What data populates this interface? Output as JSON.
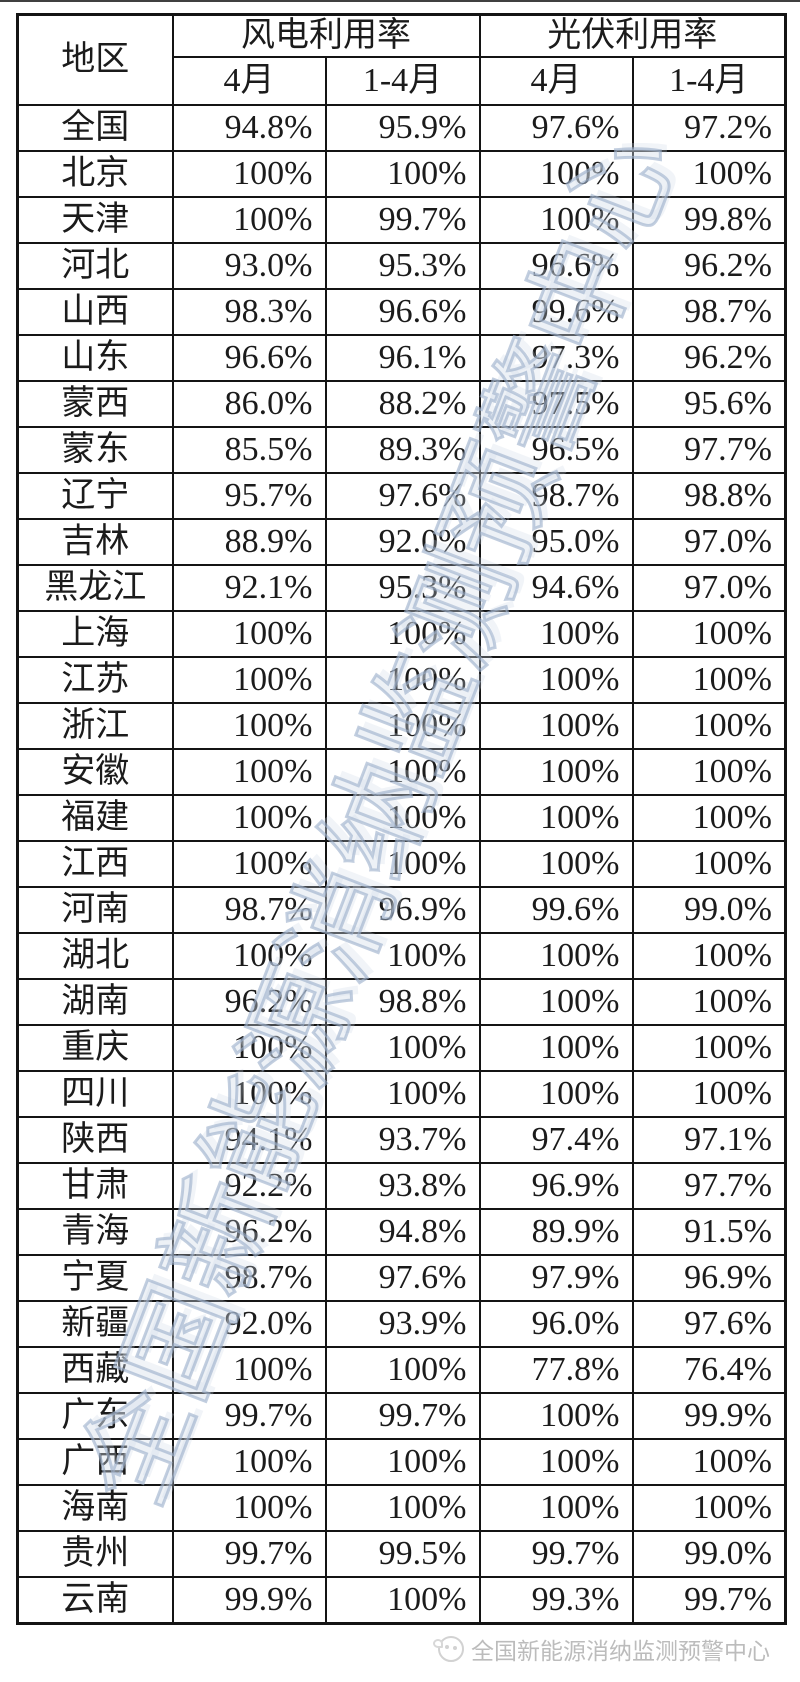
{
  "table": {
    "header": {
      "region": "地区",
      "wind_group": "风电利用率",
      "pv_group": "光伏利用率",
      "sub_apr": "4月",
      "sub_jan_apr": "1-4月"
    }
  },
  "watermark": {
    "text": "全国新能源消纳监测预警中心",
    "color": "#9cb0cb"
  },
  "footer": {
    "emblem_icon": "new-energy-center-emblem",
    "text": "全国新能源消纳监测预警中心",
    "text_color": "#bcbcbc"
  },
  "chart_data": {
    "type": "table",
    "title": "",
    "column_groups": [
      "风电利用率",
      "光伏利用率"
    ],
    "columns": [
      "地区",
      "风电利用率 4月",
      "风电利用率 1-4月",
      "光伏利用率 4月",
      "光伏利用率 1-4月"
    ],
    "rows": [
      [
        "全国",
        "94.8%",
        "95.9%",
        "97.6%",
        "97.2%"
      ],
      [
        "北京",
        "100%",
        "100%",
        "100%",
        "100%"
      ],
      [
        "天津",
        "100%",
        "99.7%",
        "100%",
        "99.8%"
      ],
      [
        "河北",
        "93.0%",
        "95.3%",
        "96.6%",
        "96.2%"
      ],
      [
        "山西",
        "98.3%",
        "96.6%",
        "99.6%",
        "98.7%"
      ],
      [
        "山东",
        "96.6%",
        "96.1%",
        "97.3%",
        "96.2%"
      ],
      [
        "蒙西",
        "86.0%",
        "88.2%",
        "97.5%",
        "95.6%"
      ],
      [
        "蒙东",
        "85.5%",
        "89.3%",
        "96.5%",
        "97.7%"
      ],
      [
        "辽宁",
        "95.7%",
        "97.6%",
        "98.7%",
        "98.8%"
      ],
      [
        "吉林",
        "88.9%",
        "92.0%",
        "95.0%",
        "97.0%"
      ],
      [
        "黑龙江",
        "92.1%",
        "95.3%",
        "94.6%",
        "97.0%"
      ],
      [
        "上海",
        "100%",
        "100%",
        "100%",
        "100%"
      ],
      [
        "江苏",
        "100%",
        "100%",
        "100%",
        "100%"
      ],
      [
        "浙江",
        "100%",
        "100%",
        "100%",
        "100%"
      ],
      [
        "安徽",
        "100%",
        "100%",
        "100%",
        "100%"
      ],
      [
        "福建",
        "100%",
        "100%",
        "100%",
        "100%"
      ],
      [
        "江西",
        "100%",
        "100%",
        "100%",
        "100%"
      ],
      [
        "河南",
        "98.7%",
        "96.9%",
        "99.6%",
        "99.0%"
      ],
      [
        "湖北",
        "100%",
        "100%",
        "100%",
        "100%"
      ],
      [
        "湖南",
        "96.2%",
        "98.8%",
        "100%",
        "100%"
      ],
      [
        "重庆",
        "100%",
        "100%",
        "100%",
        "100%"
      ],
      [
        "四川",
        "100%",
        "100%",
        "100%",
        "100%"
      ],
      [
        "陕西",
        "94.1%",
        "93.7%",
        "97.4%",
        "97.1%"
      ],
      [
        "甘肃",
        "92.2%",
        "93.8%",
        "96.9%",
        "97.7%"
      ],
      [
        "青海",
        "96.2%",
        "94.8%",
        "89.9%",
        "91.5%"
      ],
      [
        "宁夏",
        "98.7%",
        "97.6%",
        "97.9%",
        "96.9%"
      ],
      [
        "新疆",
        "92.0%",
        "93.9%",
        "96.0%",
        "97.6%"
      ],
      [
        "西藏",
        "100%",
        "100%",
        "77.8%",
        "76.4%"
      ],
      [
        "广东",
        "99.7%",
        "99.7%",
        "100%",
        "99.9%"
      ],
      [
        "广西",
        "100%",
        "100%",
        "100%",
        "100%"
      ],
      [
        "海南",
        "100%",
        "100%",
        "100%",
        "100%"
      ],
      [
        "贵州",
        "99.7%",
        "99.5%",
        "99.7%",
        "99.0%"
      ],
      [
        "云南",
        "99.9%",
        "100%",
        "99.3%",
        "99.7%"
      ]
    ]
  }
}
